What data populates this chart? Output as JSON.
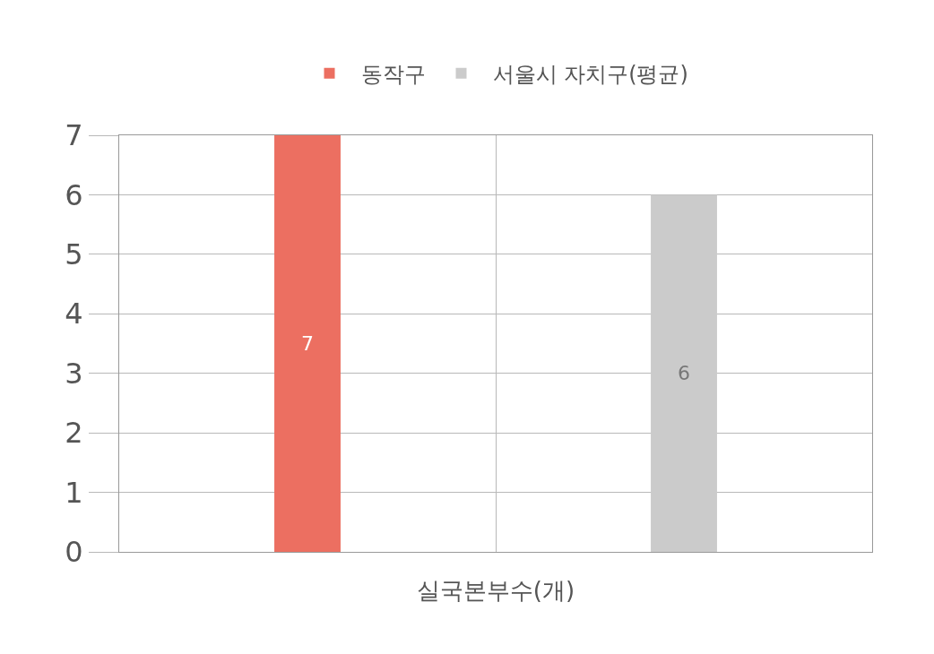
{
  "chart_data": {
    "type": "bar",
    "categories": [
      "실국본부수(개)"
    ],
    "series": [
      {
        "name": "동작구",
        "color": "#ec6f61",
        "values": [
          7
        ]
      },
      {
        "name": "서울시 자치구(평균)",
        "color": "#cbcbcb",
        "values": [
          6
        ]
      }
    ],
    "ylim": [
      0,
      7
    ],
    "yticks": [
      0,
      1,
      2,
      3,
      4,
      5,
      6,
      7
    ],
    "grid": true,
    "legend": "top",
    "data_labels": true
  }
}
